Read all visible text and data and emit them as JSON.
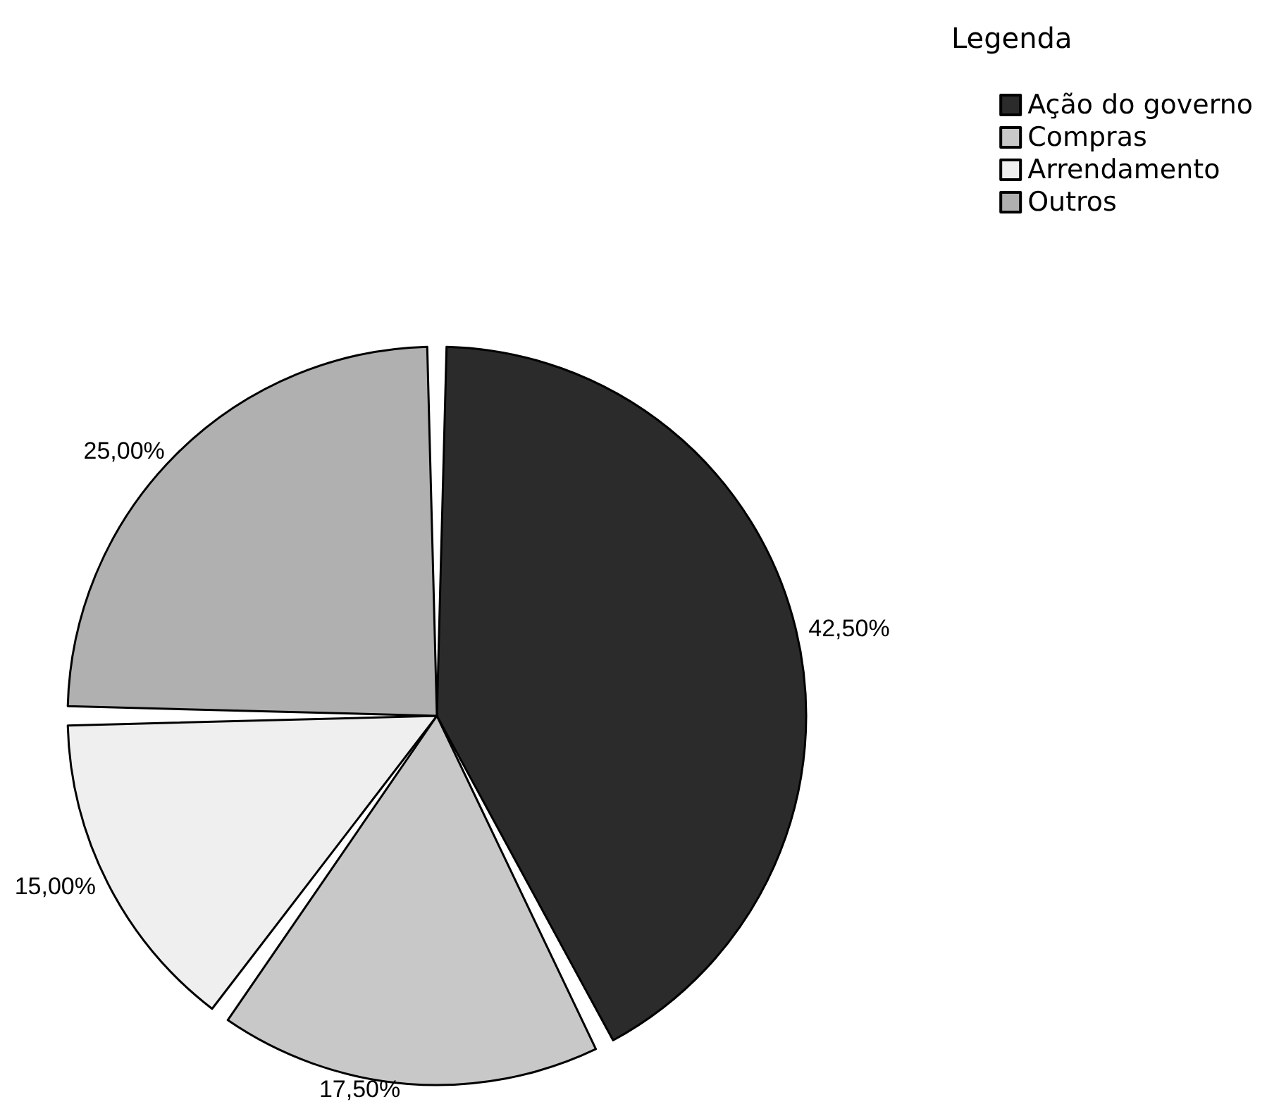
{
  "chart_data": {
    "type": "pie",
    "legend_title": "Legenda",
    "legend": "top right",
    "categories": [
      "Ação do governo",
      "Compras",
      "Arrendamento",
      "Outros"
    ],
    "values": [
      42.5,
      17.5,
      15,
      25
    ],
    "value_labels": [
      "42,50%",
      "17,50%",
      "15,00%",
      "25,00%"
    ],
    "colors": [
      "#2b2b2b",
      "#c8c8c8",
      "#efefef",
      "#b0b0b0"
    ]
  }
}
